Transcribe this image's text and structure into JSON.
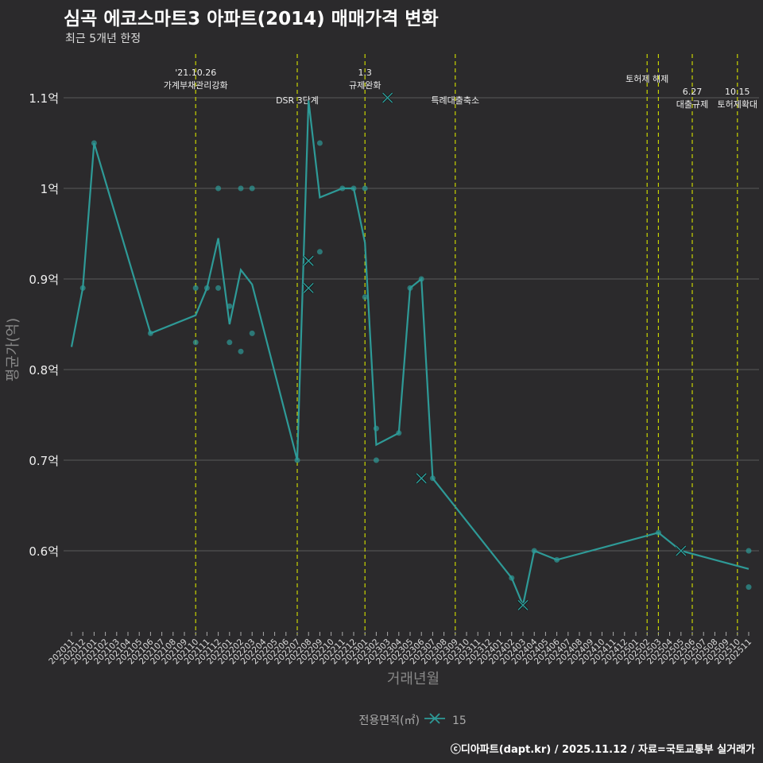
{
  "title": "심곡 에코스마트3 아파트(2014) 매매가격 변화",
  "subtitle": "최근 5개년 한정",
  "caption": "ⓒ디아파트(dapt.kr) / 2025.11.12 / 자료=국토교통부 실거래가",
  "colors": {
    "line": "#2e9a97",
    "event": "#c8d400",
    "grid": "#5a5a5a",
    "bg": "#2b2a2c"
  },
  "chart_data": {
    "type": "line",
    "xlabel": "거래년월",
    "ylabel": "평균가(억)",
    "ylim": [
      0.51,
      1.15
    ],
    "yticks": [
      {
        "v": 0.6,
        "label": "0.6억"
      },
      {
        "v": 0.7,
        "label": "0.7억"
      },
      {
        "v": 0.8,
        "label": "0.8억"
      },
      {
        "v": 0.9,
        "label": "0.9억"
      },
      {
        "v": 1.0,
        "label": "1억"
      },
      {
        "v": 1.1,
        "label": "1.1억"
      }
    ],
    "x_categories": [
      "202011",
      "202012",
      "202101",
      "202102",
      "202103",
      "202104",
      "202105",
      "202106",
      "202107",
      "202108",
      "202109",
      "202110",
      "202111",
      "202112",
      "202201",
      "202202",
      "202203",
      "202204",
      "202205",
      "202206",
      "202207",
      "202208",
      "202209",
      "202210",
      "202211",
      "202212",
      "202301",
      "202302",
      "202303",
      "202304",
      "202305",
      "202306",
      "202307",
      "202308",
      "202309",
      "202310",
      "202311",
      "202312",
      "202401",
      "202402",
      "202403",
      "202404",
      "202405",
      "202406",
      "202407",
      "202408",
      "202409",
      "202410",
      "202411",
      "202412",
      "202501",
      "202502",
      "202503",
      "202504",
      "202505",
      "202506",
      "202507",
      "202508",
      "202509",
      "202510",
      "202511"
    ],
    "legend": {
      "title": "전용면적(㎡)",
      "entries": [
        "15"
      ],
      "placement": "bottom"
    },
    "series": [
      {
        "name": "15",
        "line": [
          [
            "202011",
            0.825
          ],
          [
            "202012",
            0.89
          ],
          [
            "202101",
            1.05
          ],
          [
            "202106",
            0.84
          ],
          [
            "202110",
            0.86
          ],
          [
            "202111",
            0.89
          ],
          [
            "202112",
            0.945
          ],
          [
            "202201",
            0.85
          ],
          [
            "202202",
            0.91
          ],
          [
            "202203",
            0.894
          ],
          [
            "202207",
            0.7
          ],
          [
            "202208",
            1.097
          ],
          [
            "202209",
            0.99
          ],
          [
            "202211",
            1.0
          ],
          [
            "202212",
            1.0
          ],
          [
            "202301",
            0.94
          ],
          [
            "202302",
            0.717
          ],
          [
            "202304",
            0.73
          ],
          [
            "202305",
            0.89
          ],
          [
            "202306",
            0.9
          ],
          [
            "202307",
            0.68
          ],
          [
            "202402",
            0.57
          ],
          [
            "202403",
            0.54
          ],
          [
            "202404",
            0.6
          ],
          [
            "202406",
            0.59
          ],
          [
            "202503",
            0.62
          ],
          [
            "202505",
            0.6
          ],
          [
            "202511",
            0.58
          ]
        ],
        "points": [
          [
            "202012",
            0.89
          ],
          [
            "202101",
            1.05
          ],
          [
            "202106",
            0.84
          ],
          [
            "202110",
            0.89
          ],
          [
            "202110",
            0.83
          ],
          [
            "202111",
            0.89
          ],
          [
            "202112",
            1.0
          ],
          [
            "202112",
            0.89
          ],
          [
            "202201",
            0.87
          ],
          [
            "202201",
            0.83
          ],
          [
            "202202",
            1.0
          ],
          [
            "202202",
            0.82
          ],
          [
            "202203",
            1.0
          ],
          [
            "202203",
            0.84
          ],
          [
            "202207",
            0.7
          ],
          [
            "202209",
            1.05
          ],
          [
            "202209",
            0.93
          ],
          [
            "202211",
            1.0
          ],
          [
            "202212",
            1.0
          ],
          [
            "202301",
            1.0
          ],
          [
            "202301",
            0.88
          ],
          [
            "202302",
            0.735
          ],
          [
            "202302",
            0.7
          ],
          [
            "202304",
            0.73
          ],
          [
            "202305",
            0.89
          ],
          [
            "202306",
            0.9
          ],
          [
            "202307",
            0.68
          ],
          [
            "202402",
            0.57
          ],
          [
            "202404",
            0.6
          ],
          [
            "202406",
            0.59
          ],
          [
            "202503",
            0.62
          ],
          [
            "202511",
            0.6
          ],
          [
            "202511",
            0.56
          ]
        ],
        "crosses": [
          [
            "202208",
            0.92
          ],
          [
            "202208",
            0.89
          ],
          [
            "202303",
            1.1
          ],
          [
            "202306",
            0.68
          ],
          [
            "202403",
            0.54
          ],
          [
            "202505",
            0.6
          ]
        ]
      }
    ],
    "events": [
      {
        "x": "202110",
        "lines": [
          "'21.10.26",
          "가계부채관리강화"
        ],
        "row": 0
      },
      {
        "x": "202207",
        "lines": [
          "DSR 3단계"
        ],
        "row": 2
      },
      {
        "x": "202301",
        "lines": [
          "1.3",
          "규제완화"
        ],
        "row": 0
      },
      {
        "x": "202309",
        "lines": [
          "특례대출축소"
        ],
        "row": 2
      },
      {
        "x": "202502",
        "lines": [
          "토허제 해제"
        ],
        "row": 1
      },
      {
        "x": "202503",
        "lines": [],
        "row": 1
      },
      {
        "x": "202506",
        "lines": [
          "6.27",
          "대출규제"
        ],
        "row": 1.5
      },
      {
        "x": "202510",
        "lines": [
          "10.15",
          "토허제확대"
        ],
        "row": 1.5
      }
    ]
  }
}
